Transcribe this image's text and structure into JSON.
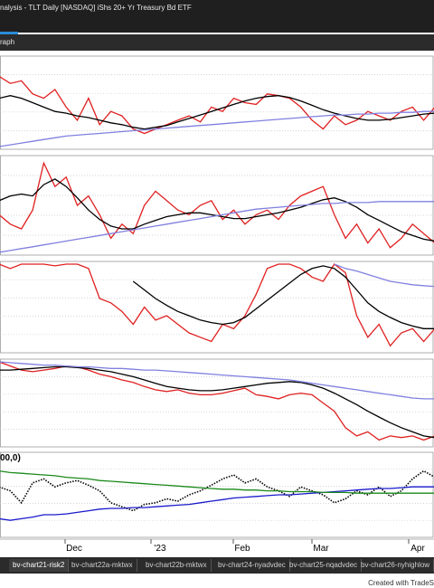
{
  "window": {
    "title": "nalysis - TLT Daily [NASDAQ] iShs 20+ Yr Treasury Bd ETF"
  },
  "toolbar": {
    "tab": "raph"
  },
  "panels": [
    {
      "series": [
        {
          "color": "#e02020",
          "values": [
            80,
            72,
            75,
            60,
            55,
            65,
            45,
            30,
            55,
            25,
            40,
            35,
            20,
            15,
            20,
            25,
            30,
            35,
            28,
            45,
            40,
            55,
            50,
            48,
            60,
            58,
            55,
            45,
            30,
            20,
            35,
            25,
            30,
            40,
            35,
            30,
            40,
            45,
            30,
            45
          ]
        },
        {
          "color": "#000000",
          "values": [
            55,
            58,
            55,
            50,
            45,
            40,
            38,
            35,
            33,
            30,
            27,
            25,
            22,
            20,
            22,
            24,
            28,
            32,
            36,
            40,
            44,
            48,
            52,
            55,
            57,
            58,
            56,
            52,
            47,
            42,
            38,
            35,
            32,
            30,
            30,
            31,
            33,
            35,
            37,
            38
          ]
        },
        {
          "color": "#8080e0",
          "values": [
            0,
            2,
            4,
            6,
            8,
            10,
            12,
            13,
            14,
            15,
            16,
            17,
            18,
            19,
            20,
            21,
            22,
            23,
            24,
            25,
            26,
            27,
            28,
            29,
            30,
            31,
            32,
            33,
            34,
            35,
            36,
            36,
            37,
            37,
            38,
            38,
            39,
            39,
            40,
            40
          ]
        }
      ]
    },
    {
      "series": [
        {
          "color": "#e02020",
          "values": [
            40,
            30,
            25,
            45,
            95,
            70,
            80,
            50,
            60,
            40,
            15,
            30,
            20,
            50,
            65,
            55,
            45,
            40,
            50,
            55,
            35,
            45,
            30,
            40,
            45,
            35,
            50,
            60,
            65,
            70,
            40,
            15,
            30,
            10,
            25,
            5,
            15,
            30,
            20,
            10
          ]
        },
        {
          "color": "#000000",
          "values": [
            55,
            60,
            62,
            60,
            72,
            78,
            70,
            58,
            45,
            35,
            28,
            25,
            25,
            30,
            34,
            38,
            40,
            42,
            42,
            40,
            38,
            36,
            36,
            38,
            40,
            42,
            45,
            48,
            52,
            56,
            58,
            54,
            48,
            40,
            34,
            28,
            22,
            18,
            14,
            12
          ]
        },
        {
          "color": "#8080e0",
          "values": [
            0,
            2,
            4,
            6,
            8,
            10,
            12,
            14,
            16,
            18,
            20,
            22,
            24,
            26,
            28,
            30,
            32,
            34,
            36,
            38,
            40,
            42,
            44,
            46,
            47,
            48,
            49,
            50,
            51,
            52,
            52,
            53,
            53,
            53,
            54,
            54,
            54,
            54,
            54,
            54
          ]
        }
      ]
    },
    {
      "series": [
        {
          "color": "#e02020",
          "values": [
            100,
            95,
            100,
            100,
            100,
            98,
            100,
            100,
            95,
            60,
            55,
            45,
            30,
            50,
            35,
            40,
            30,
            20,
            15,
            10,
            30,
            25,
            40,
            65,
            95,
            100,
            100,
            95,
            85,
            80,
            100,
            90,
            40,
            15,
            30,
            5,
            20,
            25,
            10,
            25
          ]
        },
        {
          "color": "#000000",
          "values": [
            null,
            null,
            null,
            null,
            null,
            null,
            null,
            null,
            null,
            null,
            null,
            null,
            80,
            70,
            60,
            52,
            45,
            40,
            35,
            32,
            30,
            32,
            38,
            48,
            58,
            68,
            78,
            88,
            95,
            98,
            95,
            85,
            70,
            55,
            45,
            38,
            32,
            28,
            25,
            25
          ]
        },
        {
          "color": "#8080e0",
          "values": [
            null,
            null,
            null,
            null,
            null,
            null,
            null,
            null,
            null,
            null,
            null,
            null,
            null,
            null,
            null,
            null,
            null,
            null,
            null,
            null,
            null,
            null,
            null,
            null,
            null,
            null,
            null,
            null,
            null,
            null,
            100,
            95,
            92,
            88,
            84,
            80,
            78,
            76,
            75,
            74
          ]
        }
      ]
    },
    {
      "series": [
        {
          "color": "#e02020",
          "values": [
            100,
            95,
            90,
            88,
            90,
            92,
            95,
            94,
            90,
            85,
            82,
            78,
            75,
            70,
            66,
            64,
            66,
            62,
            60,
            60,
            62,
            65,
            68,
            60,
            58,
            55,
            60,
            62,
            60,
            50,
            40,
            20,
            10,
            15,
            5,
            10,
            8,
            10,
            5,
            10
          ]
        },
        {
          "color": "#000000",
          "values": [
            90,
            90,
            91,
            92,
            93,
            94,
            94,
            93,
            92,
            90,
            88,
            85,
            82,
            78,
            74,
            70,
            68,
            66,
            65,
            65,
            66,
            68,
            70,
            72,
            74,
            75,
            76,
            75,
            72,
            68,
            62,
            55,
            48,
            40,
            33,
            26,
            20,
            15,
            10,
            8
          ]
        },
        {
          "color": "#8080e0",
          "values": [
            100,
            99,
            98,
            97,
            96,
            96,
            95,
            94,
            94,
            93,
            92,
            92,
            91,
            90,
            90,
            89,
            88,
            87,
            86,
            85,
            84,
            83,
            82,
            81,
            80,
            79,
            78,
            76,
            74,
            72,
            70,
            68,
            66,
            64,
            62,
            60,
            58,
            56,
            55,
            55
          ]
        }
      ]
    },
    {
      "label": "00,0)",
      "series": [
        {
          "color": "#000000",
          "dotted": true,
          "values": [
            60,
            55,
            40,
            65,
            70,
            60,
            65,
            68,
            62,
            55,
            40,
            35,
            30,
            38,
            40,
            45,
            42,
            50,
            55,
            62,
            70,
            75,
            65,
            70,
            60,
            55,
            48,
            60,
            55,
            50,
            40,
            45,
            55,
            50,
            60,
            48,
            55,
            70,
            80,
            72
          ]
        },
        {
          "color": "#1a1acc",
          "values": [
            20,
            18,
            20,
            22,
            25,
            25,
            26,
            28,
            30,
            32,
            33,
            33,
            34,
            34,
            35,
            36,
            37,
            38,
            40,
            42,
            44,
            46,
            47,
            48,
            49,
            50,
            50,
            51,
            52,
            53,
            54,
            55,
            56,
            57,
            58,
            58,
            59,
            60,
            60,
            60
          ]
        },
        {
          "color": "#1a8a1a",
          "values": [
            80,
            78,
            77,
            76,
            75,
            74,
            72,
            71,
            70,
            68,
            67,
            66,
            65,
            64,
            63,
            62,
            61,
            60,
            59,
            58,
            57,
            57,
            56,
            56,
            55,
            55,
            54,
            54,
            54,
            53,
            53,
            53,
            52,
            52,
            52,
            52,
            52,
            52,
            52,
            52
          ]
        }
      ]
    }
  ],
  "x_axis": {
    "labels": [
      "Dec",
      "'23",
      "Feb",
      "Mar",
      "Apr"
    ]
  },
  "tabs": [
    "bv-chart21-risk2",
    "bv-chart22a-mktwx",
    "bv-chart22b-mktwx",
    "bv-chart24-nyadvdec",
    "bv-chart25-nqadvdec",
    "bv-chart26-nyhighlow"
  ],
  "status": "Created with TradeS"
}
